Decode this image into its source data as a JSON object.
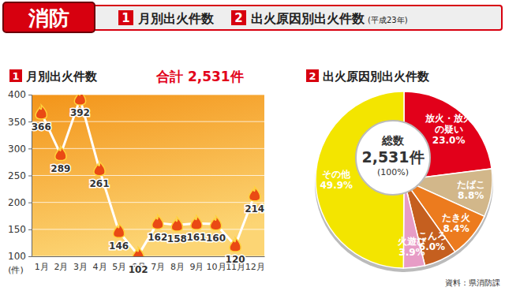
{
  "header": {
    "title": "消防",
    "items": [
      {
        "number": "1",
        "label": "月別出火件数"
      },
      {
        "number": "2",
        "label": "出火原因別出火件数"
      }
    ],
    "note": "(平成23年)"
  },
  "source": "資料：県消防課",
  "chart_data": [
    {
      "type": "line",
      "badge": "1",
      "title": "月別出火件数",
      "annotation": "合計 2,531件",
      "y_label": "(件)",
      "categories": [
        "1月",
        "2月",
        "3月",
        "4月",
        "5月",
        "6月",
        "7月",
        "8月",
        "9月",
        "10月",
        "11月",
        "12月"
      ],
      "values": [
        366,
        289,
        392,
        261,
        146,
        102,
        162,
        158,
        161,
        160,
        120,
        214
      ],
      "color": "#ffffff",
      "marker": "flame",
      "ylim": [
        100,
        400
      ],
      "yticks": [
        100,
        150,
        200,
        250,
        300,
        350,
        400
      ],
      "grid": true,
      "data_labels": true
    },
    {
      "type": "pie",
      "badge": "2",
      "title": "出火原因別出火件数",
      "categories": [
        "放火・放火の疑い",
        "たばこ",
        "たき火",
        "こんろ",
        "火遊び",
        "その他"
      ],
      "values": [
        23.0,
        8.8,
        8.4,
        6.0,
        3.9,
        49.9
      ],
      "value_labels": [
        "23.0%",
        "8.8%",
        "8.4%",
        "6.0%",
        "3.9%",
        "49.9%"
      ],
      "colors": [
        "#e2001a",
        "#d2b78a",
        "#ec7b1e",
        "#c55f1f",
        "#e79cc6",
        "#f3e500"
      ],
      "center_text": [
        "総数",
        "2,531件",
        "(100%)"
      ],
      "data_labels": true
    }
  ]
}
